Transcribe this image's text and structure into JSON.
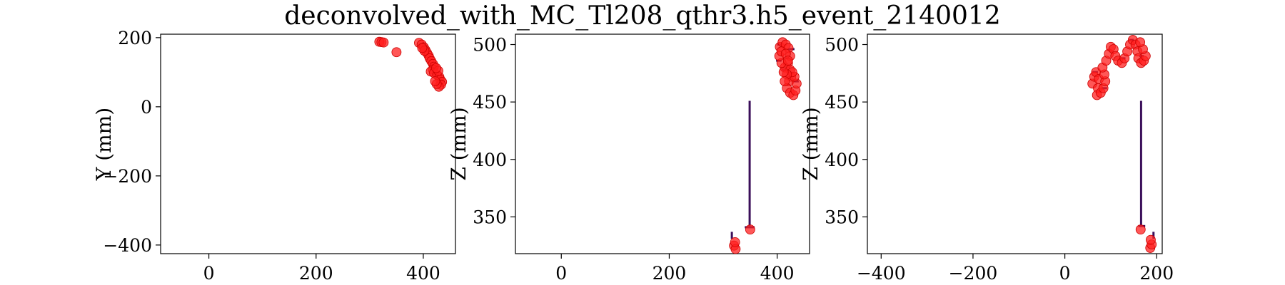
{
  "colors": {
    "hit_marker": "#ff1f1f",
    "hit_edge": "#cc0000",
    "line_segment": "#3b0f5a",
    "teal": "#2a8c8a"
  },
  "chart_data": {
    "title": "deconvolved_with_MC_Tl208_qthr3.h5_event_2140012",
    "panels": [
      {
        "type": "scatter",
        "xlabel": "",
        "ylabel": "Y (mm)",
        "xlim": [
          -90,
          460
        ],
        "ylim": [
          -425,
          210
        ],
        "xticks": [
          0,
          200,
          400
        ],
        "xtick_labels": [
          "0",
          "200",
          "400"
        ],
        "yticks": [
          200,
          0,
          -200,
          -400
        ],
        "ytick_labels": [
          "200",
          "0",
          "−200",
          "−400"
        ],
        "points": [
          [
            318,
            188
          ],
          [
            322,
            187
          ],
          [
            326,
            186
          ],
          [
            350,
            158
          ],
          [
            392,
            185
          ],
          [
            397,
            180
          ],
          [
            401,
            172
          ],
          [
            404,
            164
          ],
          [
            407,
            156
          ],
          [
            410,
            148
          ],
          [
            412,
            140
          ],
          [
            415,
            132
          ],
          [
            418,
            124
          ],
          [
            420,
            116
          ],
          [
            418,
            108
          ],
          [
            414,
            102
          ],
          [
            420,
            98
          ],
          [
            426,
            92
          ],
          [
            430,
            86
          ],
          [
            432,
            78
          ],
          [
            435,
            72
          ],
          [
            433,
            64
          ],
          [
            429,
            58
          ],
          [
            425,
            66
          ],
          [
            422,
            74
          ],
          [
            428,
            104
          ],
          [
            424,
            112
          ],
          [
            402,
            162
          ],
          [
            398,
            170
          ]
        ],
        "segments": []
      },
      {
        "type": "scatter",
        "xlabel": "",
        "ylabel": "Z (mm)",
        "xlim": [
          -85,
          460
        ],
        "ylim": [
          318,
          509
        ],
        "xticks": [
          0,
          200,
          400
        ],
        "xtick_labels": [
          "0",
          "200",
          "400"
        ],
        "yticks": [
          500,
          450,
          400,
          350
        ],
        "ytick_labels": [
          "500",
          "450",
          "400",
          "350"
        ],
        "points": [
          [
            320,
            325
          ],
          [
            323,
            322
          ],
          [
            322,
            328
          ],
          [
            350,
            339
          ],
          [
            405,
            498
          ],
          [
            410,
            502
          ],
          [
            416,
            500
          ],
          [
            421,
            497
          ],
          [
            424,
            490
          ],
          [
            420,
            484
          ],
          [
            414,
            480
          ],
          [
            408,
            484
          ],
          [
            404,
            490
          ],
          [
            408,
            494
          ],
          [
            416,
            492
          ],
          [
            420,
            486
          ],
          [
            424,
            478
          ],
          [
            426,
            472
          ],
          [
            422,
            468
          ],
          [
            418,
            462
          ],
          [
            424,
            458
          ],
          [
            430,
            456
          ],
          [
            434,
            460
          ],
          [
            436,
            466
          ],
          [
            432,
            472
          ],
          [
            428,
            476
          ],
          [
            418,
            474
          ],
          [
            414,
            468
          ],
          [
            412,
            476
          ]
        ],
        "segments": [
          [
            [
              349,
              342
            ],
            [
              349,
              451
            ]
          ],
          [
            [
              316,
              331
            ],
            [
              316,
              337
            ]
          ],
          [
            [
              340,
              341
            ],
            [
              358,
              341
            ]
          ],
          [
            [
              400,
              500
            ],
            [
              410,
              500
            ]
          ],
          [
            [
              420,
              496
            ],
            [
              432,
              496
            ]
          ],
          [
            [
              398,
              486
            ],
            [
              408,
              486
            ]
          ],
          [
            [
              428,
              468
            ],
            [
              440,
              468
            ]
          ],
          [
            [
              408,
              478
            ],
            [
              416,
              478
            ]
          ]
        ]
      },
      {
        "type": "scatter",
        "xlabel": "",
        "ylabel": "Z (mm)",
        "xlim": [
          -430,
          212
        ],
        "ylim": [
          318,
          509
        ],
        "xticks": [
          -400,
          -200,
          0,
          200
        ],
        "xtick_labels": [
          "−400",
          "−200",
          "0",
          "200"
        ],
        "yticks": [
          500,
          450,
          400,
          350
        ],
        "ytick_labels": [
          "500",
          "450",
          "400",
          "350"
        ],
        "points": [
          [
            60,
            466
          ],
          [
            64,
            472
          ],
          [
            68,
            476
          ],
          [
            74,
            470
          ],
          [
            72,
            462
          ],
          [
            70,
            456
          ],
          [
            78,
            458
          ],
          [
            84,
            462
          ],
          [
            88,
            468
          ],
          [
            86,
            474
          ],
          [
            82,
            480
          ],
          [
            90,
            486
          ],
          [
            96,
            492
          ],
          [
            100,
            498
          ],
          [
            106,
            496
          ],
          [
            110,
            490
          ],
          [
            116,
            486
          ],
          [
            124,
            484
          ],
          [
            130,
            488
          ],
          [
            136,
            494
          ],
          [
            142,
            500
          ],
          [
            148,
            504
          ],
          [
            154,
            500
          ],
          [
            158,
            494
          ],
          [
            160,
            488
          ],
          [
            166,
            484
          ],
          [
            172,
            486
          ],
          [
            176,
            490
          ],
          [
            170,
            496
          ],
          [
            164,
            502
          ],
          [
            186,
            323
          ],
          [
            189,
            326
          ],
          [
            187,
            330
          ],
          [
            165,
            339
          ]
        ],
        "segments": [
          [
            [
              166,
              342
            ],
            [
              166,
              451
            ]
          ],
          [
            [
              193,
              331
            ],
            [
              193,
              337
            ]
          ],
          [
            [
              160,
              342
            ],
            [
              175,
              342
            ]
          ],
          [
            [
              60,
              476
            ],
            [
              72,
              476
            ]
          ],
          [
            [
              140,
              504
            ],
            [
              150,
              504
            ]
          ],
          [
            [
              80,
              462
            ],
            [
              92,
              462
            ]
          ],
          [
            [
              120,
              488
            ],
            [
              132,
              488
            ]
          ],
          [
            [
              162,
              490
            ],
            [
              172,
              490
            ]
          ]
        ]
      }
    ]
  }
}
